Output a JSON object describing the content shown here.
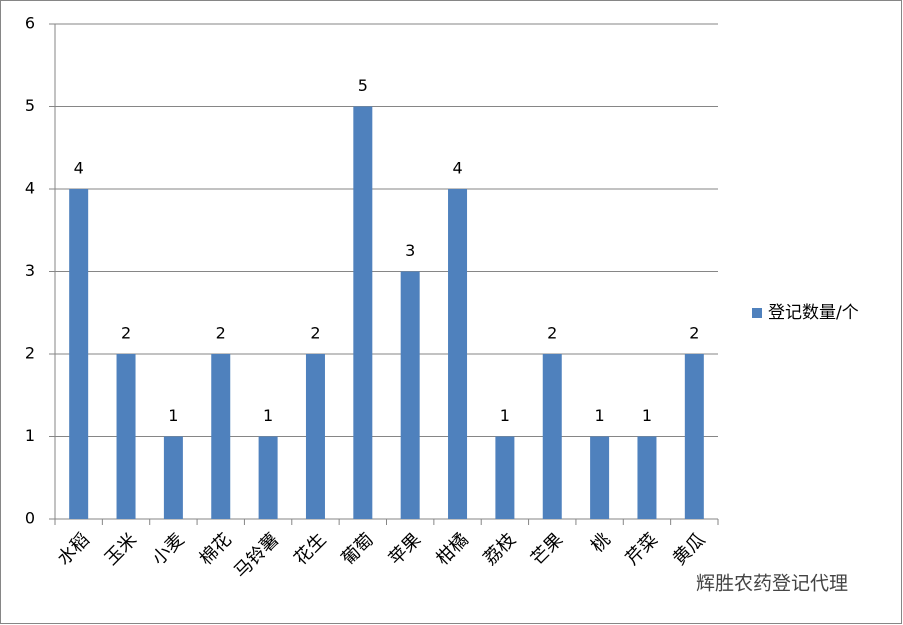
{
  "chart_data": {
    "type": "bar",
    "categories": [
      "水稻",
      "玉米",
      "小麦",
      "棉花",
      "马铃薯",
      "花生",
      "葡萄",
      "苹果",
      "柑橘",
      "荔枝",
      "芒果",
      "桃",
      "芹菜",
      "黄瓜"
    ],
    "series": [
      {
        "name": "登记数量/个",
        "color": "#4f81bd",
        "values": [
          4,
          2,
          1,
          2,
          1,
          2,
          5,
          3,
          4,
          1,
          2,
          1,
          1,
          2
        ]
      }
    ],
    "ylim": [
      0,
      6
    ],
    "yticks": [
      0,
      1,
      2,
      3,
      4,
      5,
      6
    ],
    "grid": true,
    "legend": "right"
  },
  "watermark": "辉胜农药登记代理"
}
